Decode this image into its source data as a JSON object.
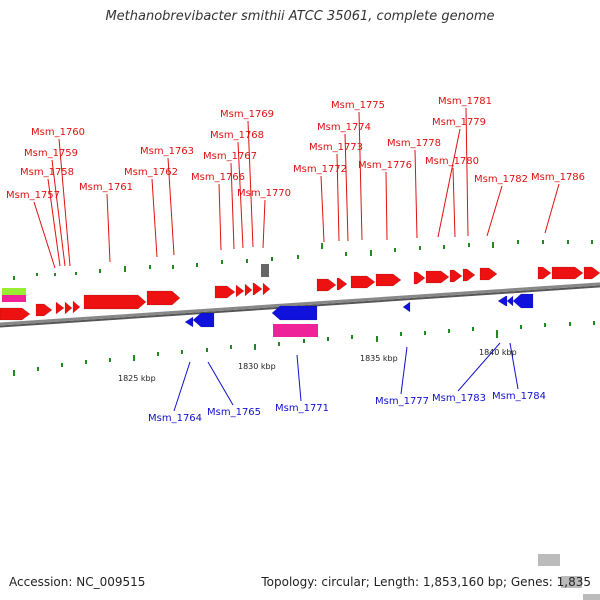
{
  "title": "Methanobrevibacter smithii ATCC 35061, complete genome",
  "footer": {
    "accession": "Accession: NC_009515",
    "summary": "Topology: circular; Length: 1,853,160 bp; Genes: 1,835"
  },
  "colors": {
    "forward": "#ee1111",
    "reverse": "#1111dd",
    "gray_gene": "#bbbbbb",
    "rna_pink": "#ee2299",
    "rna_green": "#99ee33",
    "dark_gray": "#666666",
    "tick": "#228822",
    "backbone": "#888888"
  },
  "top_labels": [
    {
      "text": "Msm_1757"
    },
    {
      "text": "Msm_1758"
    },
    {
      "text": "Msm_1759"
    },
    {
      "text": "Msm_1760"
    },
    {
      "text": "Msm_1761"
    },
    {
      "text": "Msm_1762"
    },
    {
      "text": "Msm_1763"
    },
    {
      "text": "Msm_1766"
    },
    {
      "text": "Msm_1767"
    },
    {
      "text": "Msm_1768"
    },
    {
      "text": "Msm_1769"
    },
    {
      "text": "Msm_1770"
    },
    {
      "text": "Msm_1772"
    },
    {
      "text": "Msm_1773"
    },
    {
      "text": "Msm_1774"
    },
    {
      "text": "Msm_1775"
    },
    {
      "text": "Msm_1776"
    },
    {
      "text": "Msm_1778"
    },
    {
      "text": "Msm_1779"
    },
    {
      "text": "Msm_1780"
    },
    {
      "text": "Msm_1781"
    },
    {
      "text": "Msm_1782"
    },
    {
      "text": "Msm_1786"
    }
  ],
  "bottom_labels": [
    {
      "text": "Msm_1764"
    },
    {
      "text": "Msm_1765"
    },
    {
      "text": "Msm_1771"
    },
    {
      "text": "Msm_1777"
    },
    {
      "text": "Msm_1783"
    },
    {
      "text": "Msm_1784"
    }
  ],
  "scale_labels": [
    {
      "text": "1825 kbp"
    },
    {
      "text": "1830 kbp"
    },
    {
      "text": "1835 kbp"
    },
    {
      "text": "1840 kbp"
    }
  ]
}
